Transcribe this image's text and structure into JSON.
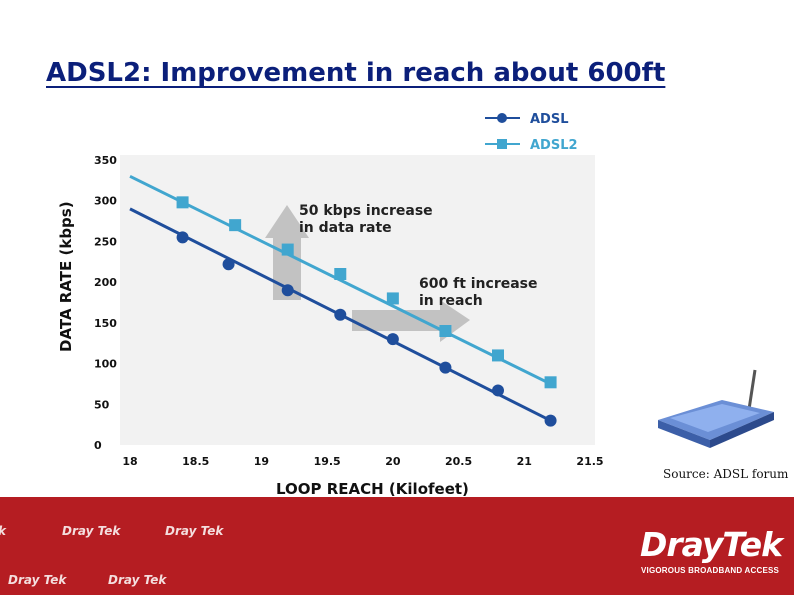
{
  "slide": {
    "title": "ADSL2: Improvement in reach about 600ft",
    "source": "Source: ADSL forum"
  },
  "footer": {
    "brand": "DrayTek",
    "tagline": "VIGOROUS BROADBAND ACCESS",
    "tile_text": "Dray Tek",
    "edge_text": "k",
    "background_color": "#b51d22"
  },
  "chart_data": {
    "type": "line",
    "title": "",
    "xlabel": "LOOP REACH (Kilofeet)",
    "ylabel": "DATA RATE (kbps)",
    "xlim": [
      18,
      21.5
    ],
    "ylim": [
      0,
      350
    ],
    "x_ticks": [
      "18",
      "18.5",
      "19",
      "19.5",
      "20",
      "20.5",
      "21",
      "21.5"
    ],
    "y_ticks": [
      "0",
      "50",
      "100",
      "150",
      "200",
      "250",
      "300",
      "350"
    ],
    "grid": false,
    "legend_position": "top-right",
    "series": [
      {
        "name": "ADSL",
        "color": "#1f4e9c",
        "marker": "circle",
        "line_start": [
          18,
          290
        ],
        "line_end": [
          21.2,
          30
        ],
        "x": [
          18.4,
          18.75,
          19.2,
          19.6,
          20.0,
          20.4,
          20.8,
          21.2
        ],
        "y": [
          255,
          222,
          190,
          160,
          130,
          95,
          67,
          30
        ]
      },
      {
        "name": "ADSL2",
        "color": "#41a6cf",
        "marker": "square",
        "line_start": [
          18,
          330
        ],
        "line_end": [
          21.2,
          75
        ],
        "x": [
          18.4,
          18.8,
          19.2,
          19.6,
          20.0,
          20.4,
          20.8,
          21.2
        ],
        "y": [
          298,
          270,
          240,
          210,
          180,
          140,
          110,
          77
        ]
      }
    ],
    "annotations": [
      {
        "line1": "50 kbps increase",
        "line2": "in data rate"
      },
      {
        "line1": "600 ft increase",
        "line2": "in reach"
      }
    ]
  }
}
